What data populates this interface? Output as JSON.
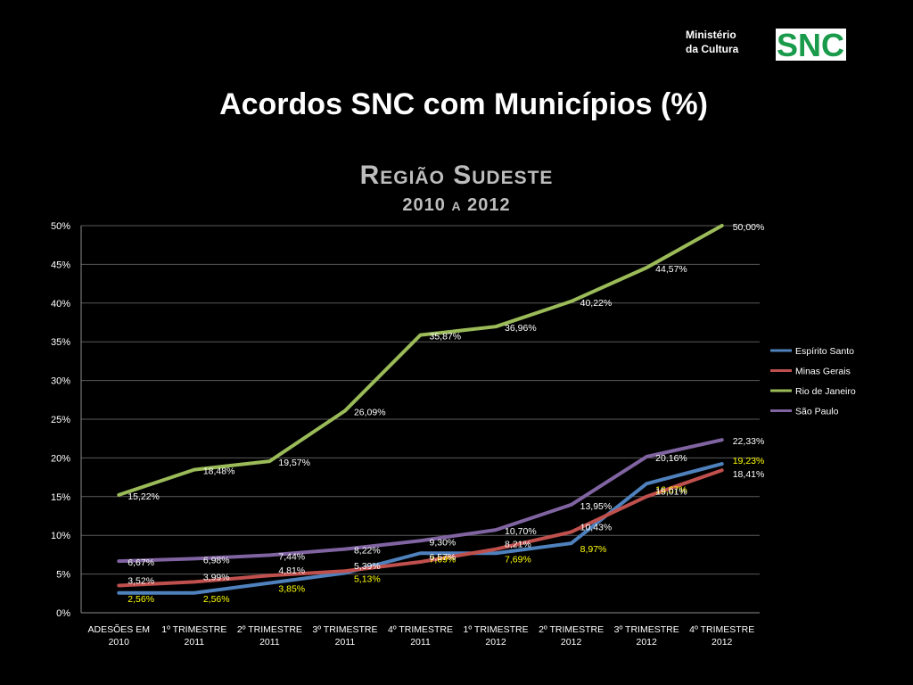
{
  "header": {
    "ministry_line1": "Ministério",
    "ministry_line2": "da Cultura",
    "logo_text": "SNC"
  },
  "slide_title": "Acordos SNC com Municípios (%)",
  "chart_data": {
    "type": "line",
    "title": "Região Sudeste",
    "subtitle": "2010 a 2012",
    "categories": [
      "ADESÕES EM|2010",
      "1º TRIMESTRE|2011",
      "2º TRIMESTRE|2011",
      "3º TRIMESTRE|2011",
      "4º TRIMESTRE|2011",
      "1º TRIMESTRE|2012",
      "2º TRIMESTRE|2012",
      "3º TRIMESTRE|2012",
      "4º TRIMESTRE|2012"
    ],
    "yticks": [
      "0%",
      "5%",
      "10%",
      "15%",
      "20%",
      "25%",
      "30%",
      "35%",
      "40%",
      "45%",
      "50%"
    ],
    "ylim": [
      0,
      50
    ],
    "grid": true,
    "legend_position": "right",
    "series": [
      {
        "name": "Espírito Santo",
        "color": "#4f81bd",
        "values": [
          2.56,
          2.56,
          3.85,
          5.13,
          7.69,
          7.69,
          8.97,
          16.67,
          19.23
        ],
        "labels": [
          "2,56%",
          "2,56%",
          "3,85%",
          "5,13%",
          "7,69%",
          "7,69%",
          "8,97%",
          "16,67%",
          "19,23%"
        ]
      },
      {
        "name": "Minas Gerais",
        "color": "#c0504d",
        "values": [
          3.52,
          3.99,
          4.81,
          5.39,
          6.57,
          8.21,
          10.43,
          15.01,
          18.41
        ],
        "labels": [
          "3,52%",
          "3,99%",
          "4,81%",
          "5,39%",
          "6,57%",
          "8,21%",
          "10,43%",
          "15,01%",
          "18,41%"
        ]
      },
      {
        "name": "Rio de Janeiro",
        "color": "#9bbb59",
        "values": [
          15.22,
          18.48,
          19.57,
          26.09,
          35.87,
          36.96,
          40.22,
          44.57,
          50.0
        ],
        "labels": [
          "15,22%",
          "18,48%",
          "19,57%",
          "26,09%",
          "35,87%",
          "36,96%",
          "40,22%",
          "44,57%",
          "50,00%"
        ]
      },
      {
        "name": "São Paulo",
        "color": "#8064a2",
        "values": [
          6.67,
          6.98,
          7.44,
          8.22,
          9.3,
          10.7,
          13.95,
          20.16,
          22.33
        ],
        "labels": [
          "6,67%",
          "6,98%",
          "7,44%",
          "8,22%",
          "9,30%",
          "10,70%",
          "13,95%",
          "20,16%",
          "22,33%"
        ]
      }
    ]
  }
}
